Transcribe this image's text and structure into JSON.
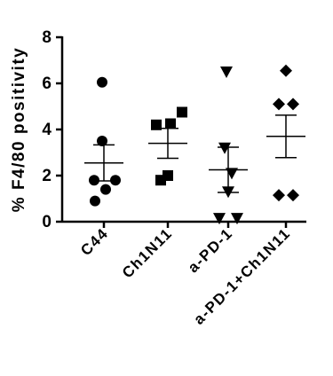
{
  "chart_data": {
    "type": "dot",
    "y_label": "% F4/80 positivity",
    "categories": [
      "C44",
      "Ch1N11",
      "a-PD-1",
      "a-PD-1+Ch1N11"
    ],
    "markers": [
      "circle",
      "square",
      "triangle-down",
      "diamond"
    ],
    "color": "#000000",
    "points": [
      [
        6.05,
        3.5,
        1.8,
        1.8,
        1.4,
        0.9
      ],
      [
        4.75,
        4.25,
        4.2,
        2.0,
        1.8
      ],
      [
        6.5,
        3.2,
        2.1,
        1.3,
        0.15,
        0.15
      ],
      [
        6.55,
        5.1,
        5.1,
        1.15,
        1.15
      ]
    ],
    "means": [
      2.55,
      3.4,
      2.25,
      3.7
    ],
    "sem": [
      0.78,
      0.65,
      0.98,
      0.92
    ],
    "ylim": [
      0,
      8
    ],
    "yticks": [
      0,
      2,
      4,
      6,
      8
    ]
  }
}
